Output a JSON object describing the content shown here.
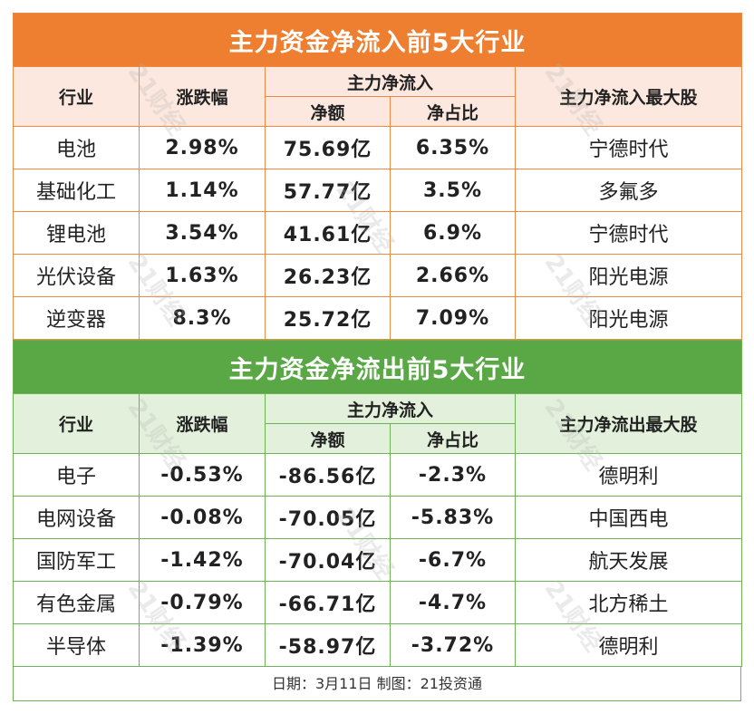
{
  "tables": [
    {
      "title": "主力资金净流入前5大行业",
      "headers": [
        "行业",
        "涨跌幅",
        "主力净流入",
        "净额",
        "净占比",
        "主力净流入最大股"
      ],
      "rows": [
        [
          "电池",
          "2.98%",
          "75.69亿",
          "6.35%",
          "宁德时代"
        ],
        [
          "基础化工",
          "1.14%",
          "57.77亿",
          "3.5%",
          "多氟多"
        ],
        [
          "锂电池",
          "3.54%",
          "41.61亿",
          "6.9%",
          "宁德时代"
        ],
        [
          "光伏设备",
          "1.63%",
          "26.23亿",
          "2.66%",
          "阳光电源"
        ],
        [
          "逆变器",
          "8.3%",
          "25.72亿",
          "7.09%",
          "阳光电源"
        ]
      ]
    },
    {
      "title": "主力资金净流出前5大行业",
      "headers": [
        "行业",
        "涨跌幅",
        "主力净流入",
        "净额",
        "净占比",
        "主力净流出最大股"
      ],
      "rows": [
        [
          "电子",
          "-0.53%",
          "-86.56亿",
          "-2.3%",
          "德明利"
        ],
        [
          "电网设备",
          "-0.08%",
          "-70.05亿",
          "-5.83%",
          "中国西电"
        ],
        [
          "国防军工",
          "-1.42%",
          "-70.04亿",
          "-6.7%",
          "航天发展"
        ],
        [
          "有色金属",
          "-0.79%",
          "-66.71亿",
          "-4.7%",
          "北方稀土"
        ],
        [
          "半导体",
          "-1.39%",
          "-58.97亿",
          "-3.72%",
          "德明利"
        ]
      ]
    }
  ],
  "footer": "日期：3月11日 制图：21投资通",
  "watermark": "21财经"
}
